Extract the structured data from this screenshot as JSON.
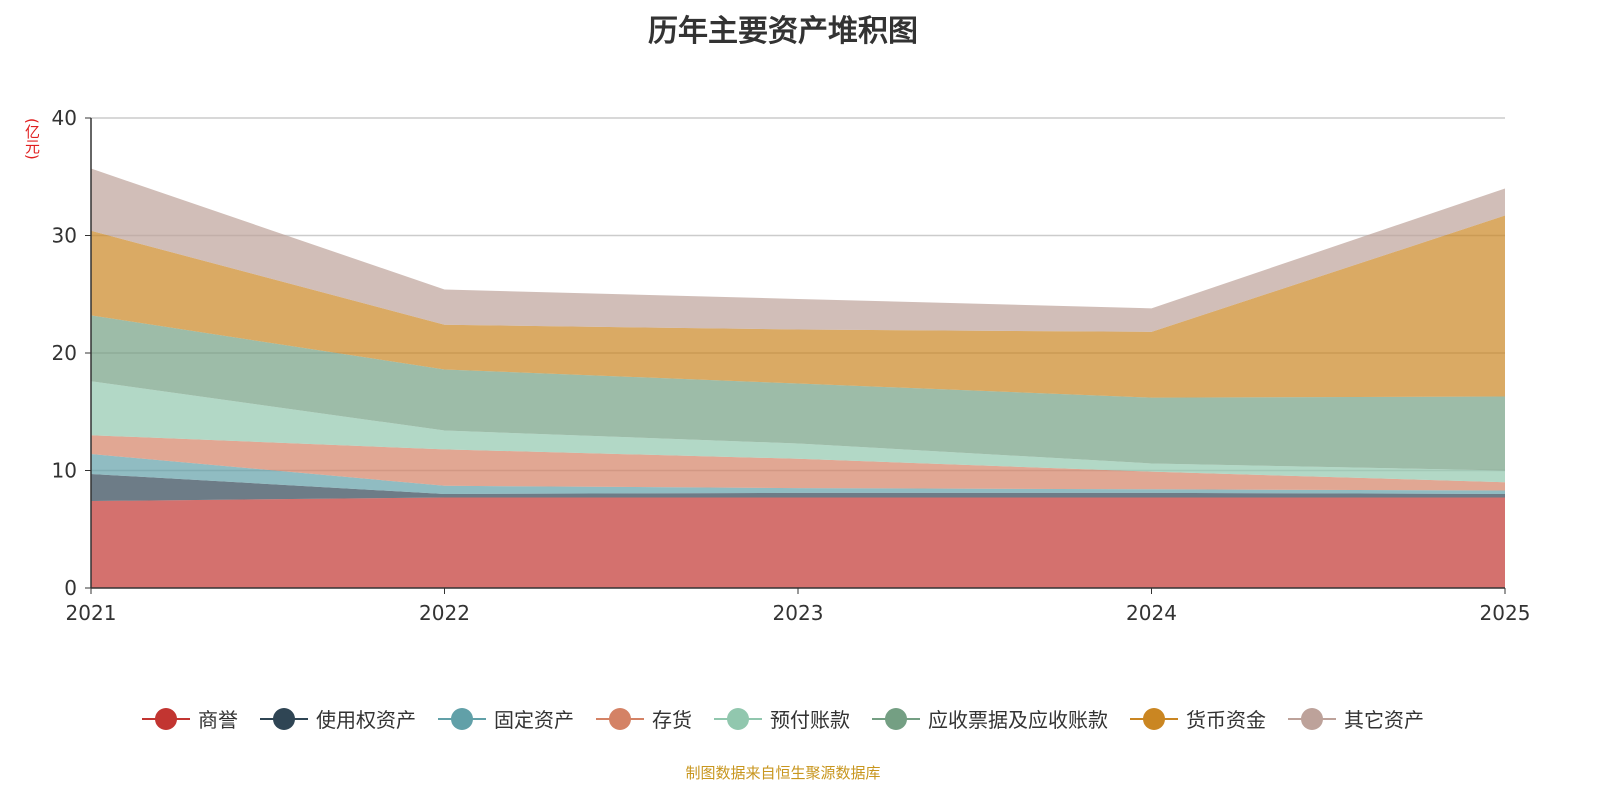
{
  "chart_data": {
    "type": "area",
    "stacked": true,
    "title": "历年主要资产堆积图",
    "ylabel": "(亿元)",
    "xlabel": "",
    "categories": [
      "2021",
      "2022",
      "2023",
      "2024",
      "2025"
    ],
    "ylim": [
      0,
      40
    ],
    "yticks": [
      0,
      10,
      20,
      30,
      40
    ],
    "grid": true,
    "legend_position": "bottom",
    "series": [
      {
        "name": "商誉",
        "color": "#c23531",
        "values": [
          7.4,
          7.7,
          7.7,
          7.7,
          7.7
        ]
      },
      {
        "name": "使用权资产",
        "color": "#2f4554",
        "values": [
          2.3,
          0.3,
          0.4,
          0.4,
          0.3
        ]
      },
      {
        "name": "固定资产",
        "color": "#61a0a8",
        "values": [
          1.7,
          0.7,
          0.4,
          0.3,
          0.3
        ]
      },
      {
        "name": "存货",
        "color": "#d48265",
        "values": [
          1.6,
          3.1,
          2.5,
          1.5,
          0.7
        ]
      },
      {
        "name": "预付账款",
        "color": "#91c7ae",
        "values": [
          4.6,
          1.6,
          1.3,
          0.7,
          1.0
        ]
      },
      {
        "name": "应收票据及应收账款",
        "color": "#749f83",
        "values": [
          5.6,
          5.2,
          5.1,
          5.6,
          6.3
        ]
      },
      {
        "name": "货币资金",
        "color": "#ca8622",
        "values": [
          7.2,
          3.8,
          4.6,
          5.6,
          15.4
        ]
      },
      {
        "name": "其它资产",
        "color": "#bda29a",
        "values": [
          5.3,
          3.0,
          2.6,
          2.0,
          2.3
        ]
      }
    ]
  },
  "footer": "制图数据来自恒生聚源数据库"
}
